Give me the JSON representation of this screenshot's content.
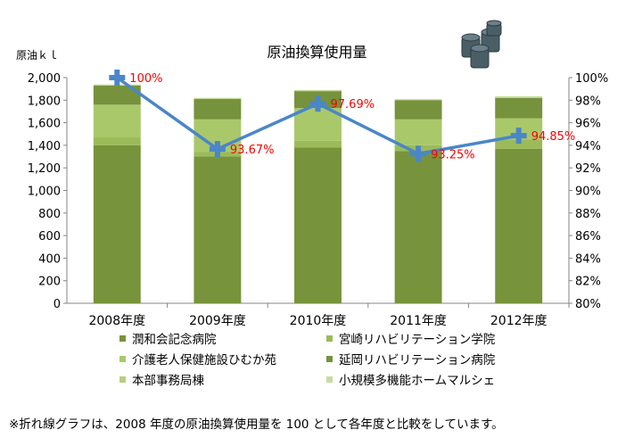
{
  "chart_data": {
    "type": "bar",
    "stacked": true,
    "title": "原油換算使用量",
    "ylabel": "原油ｋｌ",
    "ylim": [
      0,
      2000
    ],
    "yticks": [
      "0",
      "200",
      "400",
      "600",
      "800",
      "1,000",
      "1,200",
      "1,400",
      "1,600",
      "1,800",
      "2,000"
    ],
    "y2lim": [
      80,
      100
    ],
    "y2ticks": [
      "80%",
      "82%",
      "84%",
      "86%",
      "88%",
      "90%",
      "92%",
      "94%",
      "96%",
      "98%",
      "100%"
    ],
    "categories": [
      "2008年度",
      "2009年度",
      "2010年度",
      "2011年度",
      "2012年度"
    ],
    "series": [
      {
        "name": "潤和会記念病院",
        "color": "#77933c",
        "values": [
          1400,
          1300,
          1380,
          1350,
          1370
        ]
      },
      {
        "name": "宮崎リハビリテーション学院",
        "color": "#9bbb59",
        "values": [
          70,
          40,
          60,
          50,
          80
        ]
      },
      {
        "name": "介護老人保健施設ひむか苑",
        "color": "#a9c86a",
        "values": [
          290,
          290,
          290,
          230,
          190
        ]
      },
      {
        "name": "延岡リハビリテーション病院",
        "color": "#76923c",
        "values": [
          170,
          180,
          150,
          170,
          180
        ]
      },
      {
        "name": "本部事務局棟",
        "color": "#b5d07e",
        "values": [
          5,
          5,
          5,
          5,
          5
        ]
      },
      {
        "name": "小規模多機能ホームマルシェ",
        "color": "#c6dc9f",
        "values": [
          5,
          5,
          5,
          5,
          10
        ]
      }
    ],
    "line": {
      "color": "#4a86c8",
      "values": [
        100,
        93.67,
        97.69,
        93.25,
        94.85
      ],
      "labels": [
        "100%",
        "93.67%",
        "97.69%",
        "93.25%",
        "94.85%"
      ],
      "label_color": "#ff0000"
    },
    "footnote": "※折れ線グラフは、2008 年度の原油換算使用量を 100 として各年度と比較をしています。"
  }
}
